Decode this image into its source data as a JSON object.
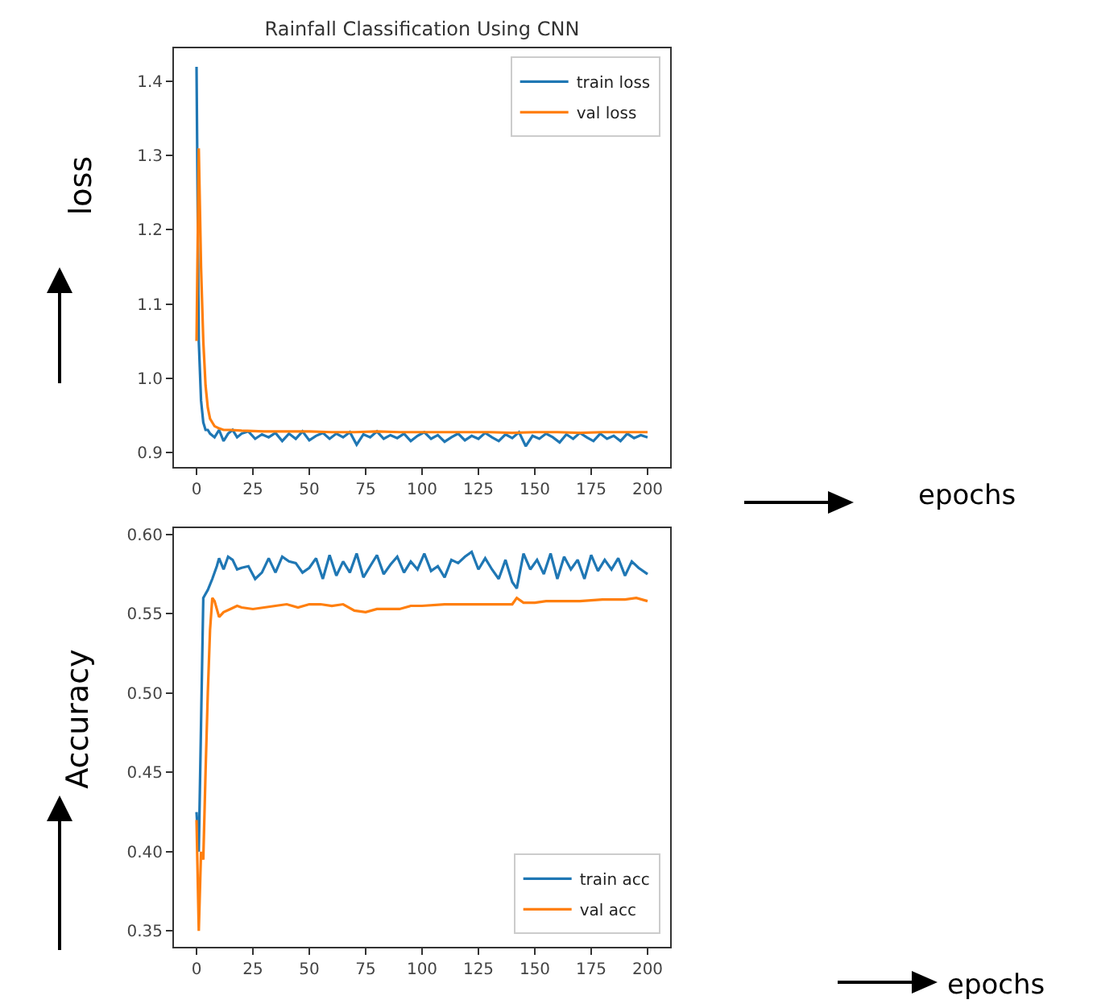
{
  "chart_data": [
    {
      "type": "line",
      "title": "Rainfall Classification Using CNN",
      "ylabel": "loss",
      "annotations": [
        "epochs"
      ],
      "xlim": [
        -10,
        210
      ],
      "xticks": [
        0,
        25,
        50,
        75,
        100,
        125,
        150,
        175,
        200
      ],
      "ylim": [
        0.88,
        1.445
      ],
      "yticks": [
        0.9,
        {
          "value": 1,
          "label": "1.0"
        },
        1.1,
        1.2,
        1.3,
        1.4
      ],
      "legend": "top right",
      "grid": false,
      "series": [
        {
          "name": "train loss",
          "color": "#1f77b4",
          "x": [
            0,
            1,
            2,
            3,
            4,
            5,
            6,
            8,
            10,
            12,
            14,
            16,
            18,
            20,
            23,
            26,
            29,
            32,
            35,
            38,
            41,
            44,
            47,
            50,
            53,
            56,
            59,
            62,
            65,
            68,
            71,
            74,
            77,
            80,
            83,
            86,
            89,
            92,
            95,
            98,
            101,
            104,
            107,
            110,
            113,
            116,
            119,
            122,
            125,
            128,
            131,
            134,
            137,
            140,
            143,
            146,
            149,
            152,
            155,
            158,
            161,
            164,
            167,
            170,
            173,
            176,
            179,
            182,
            185,
            188,
            191,
            194,
            197,
            200
          ],
          "values": [
            1.42,
            1.05,
            0.97,
            0.94,
            0.93,
            0.93,
            0.925,
            0.92,
            0.93,
            0.915,
            0.925,
            0.93,
            0.92,
            0.925,
            0.928,
            0.918,
            0.924,
            0.92,
            0.926,
            0.915,
            0.925,
            0.918,
            0.928,
            0.916,
            0.922,
            0.926,
            0.918,
            0.925,
            0.92,
            0.927,
            0.91,
            0.924,
            0.92,
            0.928,
            0.918,
            0.923,
            0.919,
            0.925,
            0.915,
            0.922,
            0.927,
            0.918,
            0.923,
            0.914,
            0.92,
            0.925,
            0.916,
            0.922,
            0.918,
            0.926,
            0.92,
            0.915,
            0.924,
            0.919,
            0.927,
            0.908,
            0.922,
            0.918,
            0.925,
            0.92,
            0.913,
            0.924,
            0.918,
            0.926,
            0.92,
            0.915,
            0.925,
            0.918,
            0.922,
            0.915,
            0.925,
            0.919,
            0.923,
            0.92
          ]
        },
        {
          "name": "val loss",
          "color": "#ff7f0e",
          "x": [
            0,
            1,
            2,
            3,
            4,
            5,
            6,
            7,
            8,
            10,
            12,
            15,
            20,
            30,
            40,
            50,
            60,
            70,
            80,
            90,
            100,
            110,
            120,
            130,
            140,
            150,
            160,
            170,
            180,
            190,
            200
          ],
          "values": [
            1.05,
            1.31,
            1.15,
            1.05,
            0.99,
            0.96,
            0.945,
            0.94,
            0.935,
            0.932,
            0.93,
            0.93,
            0.929,
            0.928,
            0.928,
            0.928,
            0.927,
            0.927,
            0.928,
            0.927,
            0.927,
            0.927,
            0.927,
            0.927,
            0.926,
            0.927,
            0.927,
            0.926,
            0.927,
            0.927,
            0.927
          ]
        }
      ]
    },
    {
      "type": "line",
      "ylabel": "Accuracy",
      "annotations": [
        "epochs"
      ],
      "xlim": [
        -10,
        210
      ],
      "xticks": [
        0,
        25,
        50,
        75,
        100,
        125,
        150,
        175,
        200
      ],
      "ylim": [
        0.34,
        0.604
      ],
      "yticks": [
        {
          "value": 0.35,
          "label": "0.35"
        },
        {
          "value": 0.4,
          "label": "0.40"
        },
        {
          "value": 0.45,
          "label": "0.45"
        },
        {
          "value": 0.5,
          "label": "0.50"
        },
        {
          "value": 0.55,
          "label": "0.55"
        },
        {
          "value": 0.6,
          "label": "0.60"
        }
      ],
      "legend": "bottom right",
      "grid": false,
      "series": [
        {
          "name": "train acc",
          "color": "#1f77b4",
          "x": [
            0,
            1,
            2,
            3,
            5,
            7,
            9,
            10,
            12,
            14,
            16,
            18,
            20,
            23,
            26,
            29,
            32,
            35,
            38,
            41,
            44,
            47,
            50,
            53,
            56,
            59,
            62,
            65,
            68,
            71,
            74,
            77,
            80,
            83,
            86,
            89,
            92,
            95,
            98,
            101,
            104,
            107,
            110,
            113,
            116,
            119,
            122,
            125,
            128,
            131,
            134,
            137,
            140,
            142,
            145,
            148,
            151,
            154,
            157,
            160,
            163,
            166,
            169,
            172,
            175,
            178,
            181,
            184,
            187,
            190,
            193,
            196,
            200
          ],
          "values": [
            0.425,
            0.4,
            0.48,
            0.56,
            0.565,
            0.572,
            0.58,
            0.585,
            0.578,
            0.586,
            0.584,
            0.578,
            0.579,
            0.58,
            0.572,
            0.576,
            0.585,
            0.576,
            0.586,
            0.583,
            0.582,
            0.576,
            0.579,
            0.585,
            0.572,
            0.587,
            0.574,
            0.583,
            0.576,
            0.588,
            0.573,
            0.58,
            0.587,
            0.575,
            0.581,
            0.586,
            0.576,
            0.583,
            0.578,
            0.588,
            0.577,
            0.58,
            0.573,
            0.584,
            0.582,
            0.586,
            0.589,
            0.578,
            0.585,
            0.578,
            0.572,
            0.584,
            0.57,
            0.566,
            0.588,
            0.578,
            0.584,
            0.575,
            0.588,
            0.572,
            0.586,
            0.578,
            0.584,
            0.572,
            0.587,
            0.577,
            0.584,
            0.578,
            0.585,
            0.574,
            0.583,
            0.579,
            0.575
          ]
        },
        {
          "name": "val acc",
          "color": "#ff7f0e",
          "x": [
            0,
            1,
            2,
            3,
            4,
            5,
            6,
            7,
            8,
            10,
            12,
            15,
            18,
            20,
            25,
            30,
            35,
            40,
            45,
            50,
            55,
            60,
            65,
            70,
            75,
            80,
            85,
            90,
            95,
            100,
            110,
            120,
            130,
            140,
            142,
            145,
            150,
            155,
            160,
            170,
            180,
            190,
            195,
            200
          ],
          "values": [
            0.42,
            0.35,
            0.4,
            0.395,
            0.45,
            0.5,
            0.54,
            0.56,
            0.558,
            0.548,
            0.551,
            0.553,
            0.555,
            0.554,
            0.553,
            0.554,
            0.555,
            0.556,
            0.554,
            0.556,
            0.556,
            0.555,
            0.556,
            0.552,
            0.551,
            0.553,
            0.553,
            0.553,
            0.555,
            0.555,
            0.556,
            0.556,
            0.556,
            0.556,
            0.56,
            0.557,
            0.557,
            0.558,
            0.558,
            0.558,
            0.559,
            0.559,
            0.56,
            0.558
          ]
        }
      ]
    }
  ]
}
